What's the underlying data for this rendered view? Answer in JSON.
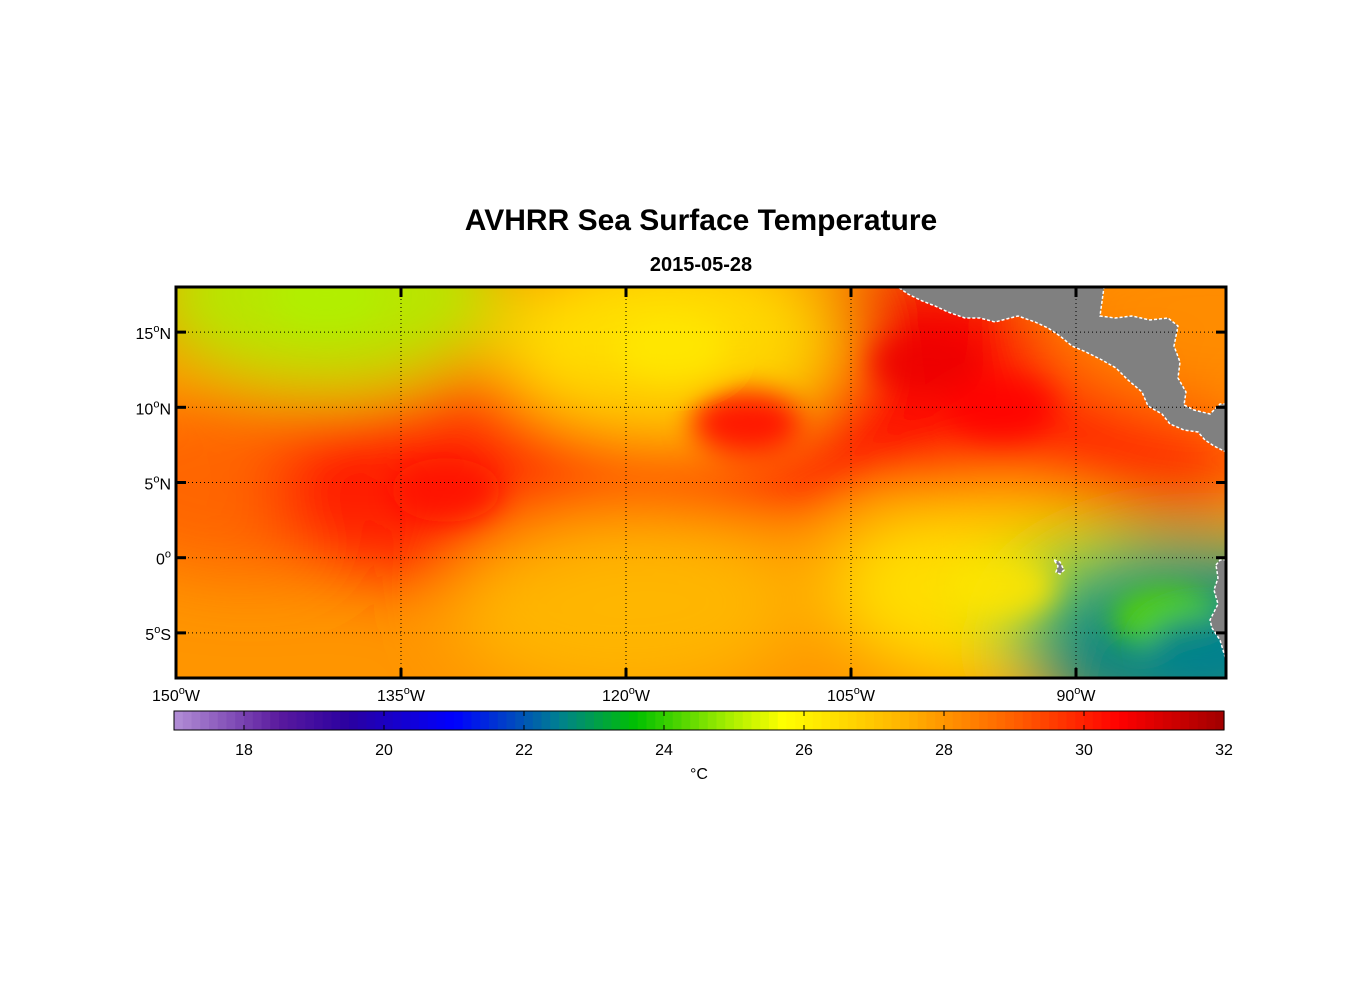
{
  "figure": {
    "title": "AVHRR Sea Surface Temperature",
    "subtitle": "2015-05-28"
  },
  "map": {
    "lon_range": [
      -150,
      -80
    ],
    "lat_range": [
      -8,
      18
    ],
    "lon_ticks": [
      {
        "value": -150,
        "deg": "150",
        "hemi": "W"
      },
      {
        "value": -135,
        "deg": "135",
        "hemi": "W"
      },
      {
        "value": -120,
        "deg": "120",
        "hemi": "W"
      },
      {
        "value": -105,
        "deg": "105",
        "hemi": "W"
      },
      {
        "value": -90,
        "deg": "90",
        "hemi": "W"
      }
    ],
    "lat_ticks": [
      {
        "value": 15,
        "deg": "15",
        "hemi": "N"
      },
      {
        "value": 10,
        "deg": "10",
        "hemi": "N"
      },
      {
        "value": 5,
        "deg": "5",
        "hemi": "N"
      },
      {
        "value": 0,
        "deg": "0",
        "hemi": ""
      },
      {
        "value": -5,
        "deg": "5",
        "hemi": "S"
      }
    ],
    "grid": true,
    "land_color": "#808080",
    "coast_color": "#ffffff"
  },
  "colorbar": {
    "min": 17,
    "max": 32,
    "ticks": [
      18,
      20,
      22,
      24,
      26,
      28,
      30,
      32
    ],
    "tick_labels": [
      "18",
      "20",
      "22",
      "24",
      "26",
      "28",
      "30",
      "32"
    ],
    "unit": "°C",
    "colormap": [
      [
        17,
        "#b38fd6"
      ],
      [
        18.5,
        "#5a1a9e"
      ],
      [
        19.5,
        "#2a00a0"
      ],
      [
        21,
        "#0000ff"
      ],
      [
        22.5,
        "#008090"
      ],
      [
        23.6,
        "#00c000"
      ],
      [
        25,
        "#b0f000"
      ],
      [
        25.7,
        "#ffff00"
      ],
      [
        27.5,
        "#ffb000"
      ],
      [
        29,
        "#ff6000"
      ],
      [
        30.5,
        "#ff0000"
      ],
      [
        32,
        "#a00000"
      ]
    ]
  },
  "chart_data": {
    "type": "heatmap",
    "title": "AVHRR Sea Surface Temperature",
    "subtitle": "2015-05-28",
    "colorbar_label": "°C",
    "value_range": [
      17,
      32
    ],
    "xlim": [
      -150,
      -80
    ],
    "ylim": [
      -8,
      18
    ],
    "features": [
      {
        "lon": -145,
        "lat": 5,
        "sst": 29.0
      },
      {
        "lon": -132,
        "lat": 4.5,
        "sst": 30.3
      },
      {
        "lon": -125,
        "lat": 7,
        "sst": 29.8
      },
      {
        "lon": -112,
        "lat": 9,
        "sst": 30.4
      },
      {
        "lon": -100,
        "lat": 13,
        "sst": 30.8
      },
      {
        "lon": -95,
        "lat": 10,
        "sst": 30.5
      },
      {
        "lon": -90,
        "lat": 6,
        "sst": 30.0
      },
      {
        "lon": -140,
        "lat": 17.5,
        "sst": 25.0
      },
      {
        "lon": -117,
        "lat": 14,
        "sst": 26.2
      },
      {
        "lon": -120,
        "lat": -3,
        "sst": 27.3
      },
      {
        "lon": -95,
        "lat": -2,
        "sst": 26.3
      },
      {
        "lon": -84,
        "lat": -4,
        "sst": 24.3
      },
      {
        "lon": -81.5,
        "lat": -6,
        "sst": 22.5
      },
      {
        "lon": -81,
        "lat": 16,
        "sst": 28.2
      }
    ]
  }
}
